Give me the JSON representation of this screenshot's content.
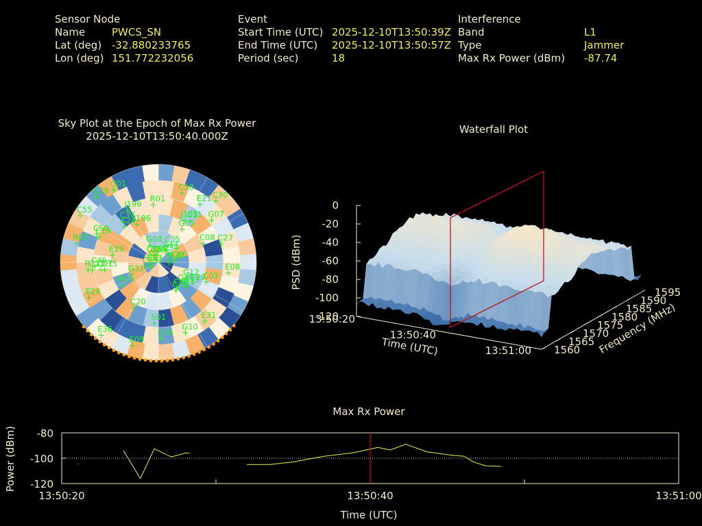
{
  "header": {
    "sensor": {
      "title": "Sensor Node",
      "rows": [
        {
          "label": "Name",
          "value": "PWCS_SN"
        },
        {
          "label": "Lat (deg)",
          "value": "-32.880233765"
        },
        {
          "label": "Lon (deg)",
          "value": "151.772232056"
        }
      ]
    },
    "event": {
      "title": "Event",
      "rows": [
        {
          "label": "Start Time (UTC)",
          "value": "2025-12-10T13:50:39Z"
        },
        {
          "label": "End Time (UTC)",
          "value": "2025-12-10T13:50:57Z"
        },
        {
          "label": "Period (sec)",
          "value": "18"
        }
      ]
    },
    "interference": {
      "title": "Interference",
      "rows": [
        {
          "label": "Band",
          "value": "L1"
        },
        {
          "label": "Type",
          "value": "Jammer"
        },
        {
          "label": "Max Rx Power (dBm)",
          "value": "-87.74"
        }
      ]
    }
  },
  "chart_data": [
    {
      "type": "scatter",
      "title": "Sky Plot at the Epoch of Max Rx Power",
      "subtitle": "2025-12-10T13:50:40.000Z",
      "satellites": [
        "C07",
        "C37",
        "C30",
        "E16",
        "C32",
        "R07",
        "E21",
        "C39",
        "G12",
        "E36",
        "C05",
        "J193",
        "C44",
        "C01",
        "E31",
        "J196",
        "S01",
        "C20",
        "C09",
        "C27",
        "C02",
        "C36",
        "G29",
        "J199",
        "E33",
        "R28",
        "C46",
        "C11",
        "C16",
        "E19",
        "E09",
        "E24",
        "G13",
        "C03",
        "C24",
        "C50",
        "C21",
        "C08",
        "R10",
        "G07",
        "G08",
        "E23",
        "G29",
        "G10",
        "C19",
        "E08",
        "C58",
        "C34",
        "R19",
        "G05",
        "R01",
        "G21",
        "C29",
        "G15",
        "R11",
        "C55",
        "G31"
      ]
    },
    {
      "type": "area",
      "title": "Waterfall Plot",
      "xlabel": "Time (UTC)",
      "ylabel": "Frequency (MHz)",
      "zlabel": "PSD (dBm)",
      "time_ticks": [
        "13:50:20",
        "13:50:40",
        "13:51:00"
      ],
      "freq_ticks": [
        "1560",
        "1565",
        "1570",
        "1575",
        "1580",
        "1585",
        "1590",
        "1595"
      ],
      "psd_ticks": [
        "0",
        "-20",
        "-40",
        "-60",
        "-80",
        "-100",
        "-120"
      ],
      "zlim": [
        -120,
        0
      ],
      "freq_range": [
        1560,
        1595
      ],
      "marker_time": "13:50:40"
    },
    {
      "type": "line",
      "title": "Max Rx Power",
      "xlabel": "Time (UTC)",
      "ylabel": "Power (dBm)",
      "xticks": [
        "13:50:20",
        "13:50:40",
        "13:51:00"
      ],
      "yticks": [
        "-80",
        "-100",
        "-120"
      ],
      "xlim": [
        0,
        40
      ],
      "ylim": [
        -120,
        -80
      ],
      "marker_x": 20,
      "series": [
        {
          "x": [
            1,
            1.05
          ],
          "y": [
            -104.5,
            -104.5
          ]
        },
        {
          "x": [
            4,
            5.1,
            6.0,
            7.1,
            8.0,
            8.3
          ],
          "y": [
            -94,
            -116,
            -92.5,
            -99,
            -96,
            -96
          ]
        },
        {
          "x": [
            12,
            13.5,
            15,
            17,
            19,
            20.5,
            21.3,
            22.3,
            23.7,
            25.2,
            26.1,
            26.7,
            27.5,
            28.5
          ],
          "y": [
            -105,
            -105,
            -103,
            -98.5,
            -95.5,
            -91.5,
            -93.5,
            -89,
            -95,
            -97.5,
            -98.5,
            -103,
            -106,
            -106.5
          ]
        }
      ],
      "line_color": "#f1ee4e",
      "marker_color": "#e01010"
    }
  ]
}
